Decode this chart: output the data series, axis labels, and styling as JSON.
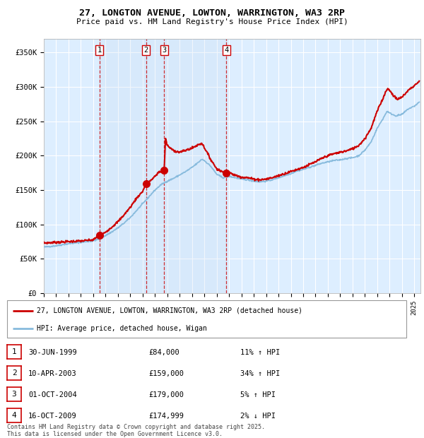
{
  "title_line1": "27, LONGTON AVENUE, LOWTON, WARRINGTON, WA3 2RP",
  "title_line2": "Price paid vs. HM Land Registry's House Price Index (HPI)",
  "ylabel_ticks": [
    "£0",
    "£50K",
    "£100K",
    "£150K",
    "£200K",
    "£250K",
    "£300K",
    "£350K"
  ],
  "ytick_values": [
    0,
    50000,
    100000,
    150000,
    200000,
    250000,
    300000,
    350000
  ],
  "ylim": [
    0,
    370000
  ],
  "xlim_start": 1995.0,
  "xlim_end": 2025.5,
  "price_color": "#cc0000",
  "hpi_color": "#88bbdd",
  "background_color": "#ffffff",
  "plot_bg_color": "#ddeeff",
  "grid_color": "#ffffff",
  "sale_dates": [
    1999.496,
    2003.274,
    2004.748,
    2009.788
  ],
  "sale_prices": [
    84000,
    159000,
    179000,
    174999
  ],
  "sale_labels": [
    "1",
    "2",
    "3",
    "4"
  ],
  "legend_price_label": "27, LONGTON AVENUE, LOWTON, WARRINGTON, WA3 2RP (detached house)",
  "legend_hpi_label": "HPI: Average price, detached house, Wigan",
  "table_entries": [
    {
      "num": "1",
      "date": "30-JUN-1999",
      "price": "£84,000",
      "change": "11% ↑ HPI"
    },
    {
      "num": "2",
      "date": "10-APR-2003",
      "price": "£159,000",
      "change": "34% ↑ HPI"
    },
    {
      "num": "3",
      "date": "01-OCT-2004",
      "price": "£179,000",
      "change": "5% ↑ HPI"
    },
    {
      "num": "4",
      "date": "16-OCT-2009",
      "price": "£174,999",
      "change": "2% ↓ HPI"
    }
  ],
  "footnote": "Contains HM Land Registry data © Crown copyright and database right 2025.\nThis data is licensed under the Open Government Licence v3.0."
}
